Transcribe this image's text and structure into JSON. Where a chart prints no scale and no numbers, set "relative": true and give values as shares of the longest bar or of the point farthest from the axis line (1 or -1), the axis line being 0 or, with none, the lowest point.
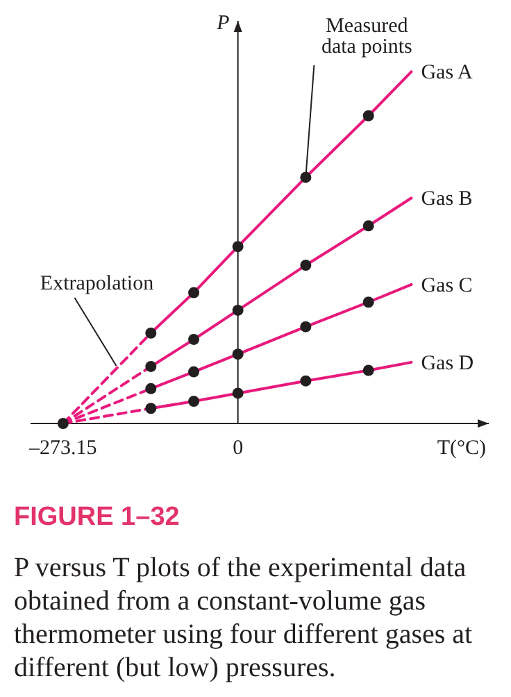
{
  "chart_data": {
    "type": "line",
    "title": "FIGURE 1–32",
    "subtitle": "P versus T plots of the experimental data obtained from a constant-volume gas thermometer using four different gases at different (but low) pressures.",
    "xlabel": "T(°C)",
    "ylabel": "P",
    "relative": true,
    "xlim": [
      -324,
      392
    ],
    "xticks": [
      {
        "value": -273.15,
        "label": "–273.15"
      },
      0
    ],
    "annotations": [
      {
        "text": "Measured data points",
        "x": 106,
        "y": 0.7
      },
      {
        "text": "Extrapolation",
        "x": -190,
        "y": 0.164
      }
    ],
    "series": [
      {
        "name": "Gas A",
        "color": "#e8197d",
        "line_style": "solid",
        "x": [
          -136,
          -69,
          0,
          106,
          204,
          271
        ],
        "values": [
          0.257,
          0.372,
          0.503,
          0.7,
          0.875,
          1
        ]
      },
      {
        "name": "Gas B",
        "color": "#e8197d",
        "line_style": "solid",
        "x": [
          -136,
          -69,
          0,
          106,
          204,
          271
        ],
        "values": [
          0.162,
          0.239,
          0.322,
          0.45,
          0.562,
          0.641
        ]
      },
      {
        "name": "Gas C",
        "color": "#e8197d",
        "line_style": "solid",
        "x": [
          -136,
          -69,
          0,
          106,
          204,
          271
        ],
        "values": [
          0.099,
          0.147,
          0.197,
          0.275,
          0.345,
          0.395
        ]
      },
      {
        "name": "Gas D",
        "color": "#e8197d",
        "line_style": "solid",
        "x": [
          -136,
          -69,
          0,
          106,
          204,
          271
        ],
        "values": [
          0.043,
          0.063,
          0.086,
          0.121,
          0.151,
          0.174
        ]
      },
      {
        "type": "line",
        "color": "#e8197d",
        "line_style": "dashed",
        "x": [
          -273.15,
          -136
        ],
        "values": [
          0,
          0.257
        ]
      },
      {
        "type": "line",
        "color": "#e8197d",
        "line_style": "dashed",
        "x": [
          -273.15,
          -136
        ],
        "values": [
          0,
          0.162
        ]
      },
      {
        "type": "line",
        "color": "#e8197d",
        "line_style": "dashed",
        "x": [
          -273.15,
          -136
        ],
        "values": [
          0,
          0.099
        ]
      },
      {
        "type": "line",
        "color": "#e8197d",
        "line_style": "dashed",
        "x": [
          -273.15,
          -136
        ],
        "values": [
          0,
          0.043
        ]
      },
      {
        "type": "scatter",
        "color": "#231f20",
        "marker": "circle",
        "x": [
          -273.15,
          -136,
          -69,
          0,
          106,
          204
        ],
        "values": [
          0,
          0.257,
          0.372,
          0.503,
          0.7,
          0.875
        ]
      },
      {
        "type": "scatter",
        "color": "#231f20",
        "marker": "circle",
        "x": [
          -136,
          -69,
          0,
          106,
          204
        ],
        "values": [
          0.162,
          0.239,
          0.322,
          0.45,
          0.562
        ]
      },
      {
        "type": "scatter",
        "color": "#231f20",
        "marker": "circle",
        "x": [
          -136,
          -69,
          0,
          106,
          204
        ],
        "values": [
          0.099,
          0.147,
          0.197,
          0.275,
          0.345
        ]
      },
      {
        "type": "scatter",
        "color": "#231f20",
        "marker": "circle",
        "x": [
          -136,
          -69,
          0,
          106,
          204
        ],
        "values": [
          0.043,
          0.063,
          0.086,
          0.121,
          0.151
        ]
      }
    ]
  }
}
